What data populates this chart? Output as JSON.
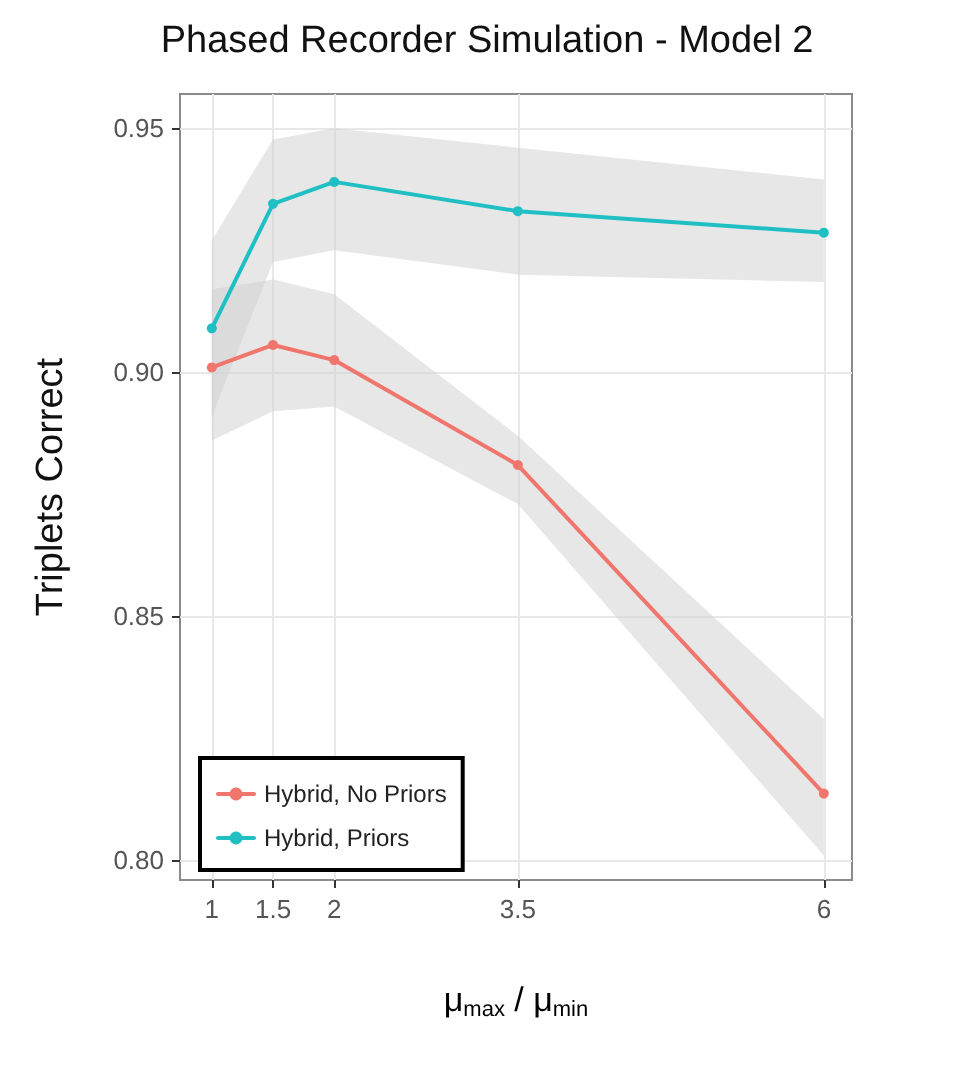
{
  "chart_data": {
    "type": "line",
    "title": "Phased Recorder Simulation - Model 2",
    "xlabel": "μ$_{max}$ / μ$_{min}$",
    "ylabel": "Triplets Correct",
    "x": [
      1,
      1.5,
      2,
      3.5,
      6
    ],
    "series": [
      {
        "name": "Hybrid, No Priors",
        "color": "#f0766d",
        "values": [
          0.901,
          0.9056,
          0.9025,
          0.881,
          0.8137
        ],
        "lower": [
          0.886,
          0.892,
          0.893,
          0.873,
          0.801
        ],
        "upper": [
          0.917,
          0.919,
          0.916,
          0.887,
          0.829
        ]
      },
      {
        "name": "Hybrid, Priors",
        "color": "#1fbfc4",
        "values": [
          0.909,
          0.9345,
          0.939,
          0.933,
          0.9286
        ],
        "lower": [
          0.891,
          0.9226,
          0.925,
          0.92,
          0.9185
        ],
        "upper": [
          0.927,
          0.9477,
          0.95,
          0.946,
          0.9395
        ]
      }
    ],
    "xlim": [
      0.74,
      6.23
    ],
    "xticks": [
      1,
      1.5,
      2,
      3.5,
      6
    ],
    "ylim": [
      0.796,
      0.957
    ],
    "yticks": [
      {
        "value": 0.8,
        "label": "0.80"
      },
      {
        "value": 0.85,
        "label": "0.85"
      },
      {
        "value": 0.9,
        "label": "0.90"
      },
      {
        "value": 0.95,
        "label": "0.95"
      }
    ],
    "grid": true,
    "legend": "bottom left",
    "marker": "circle",
    "line_style": "solid"
  }
}
